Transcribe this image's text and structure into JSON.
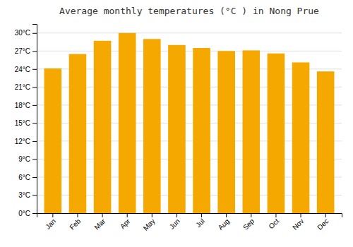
{
  "chart_data": {
    "type": "bar",
    "title": "Average monthly temperatures (°C ) in Nong Prue",
    "categories": [
      "Jan",
      "Feb",
      "Mar",
      "Apr",
      "May",
      "Jun",
      "Jul",
      "Aug",
      "Sep",
      "Oct",
      "Nov",
      "Dec"
    ],
    "values": [
      24.1,
      26.5,
      28.7,
      30.0,
      29.0,
      28.0,
      27.5,
      27.0,
      27.1,
      26.6,
      25.1,
      23.6
    ],
    "color": "#F5A800",
    "ylim": [
      0,
      31.5
    ],
    "yticks": [
      {
        "value": 0,
        "label": "0°C"
      },
      {
        "value": 3,
        "label": "3°C"
      },
      {
        "value": 6,
        "label": "6°C"
      },
      {
        "value": 9,
        "label": "9°C"
      },
      {
        "value": 12,
        "label": "12°C"
      },
      {
        "value": 15,
        "label": "15°C"
      },
      {
        "value": 18,
        "label": "18°C"
      },
      {
        "value": 21,
        "label": "21°C"
      },
      {
        "value": 24,
        "label": "24°C"
      },
      {
        "value": 27,
        "label": "27°C"
      },
      {
        "value": 30,
        "label": "30°C"
      }
    ],
    "grid": true
  }
}
